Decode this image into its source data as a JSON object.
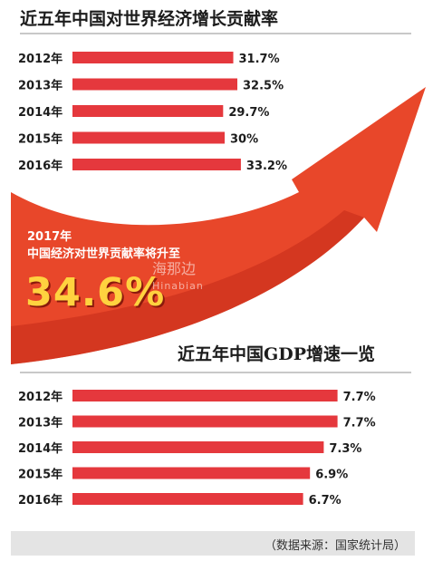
{
  "title1": "近五年中国对世界经济增长贡献率",
  "title2": "近五年中国GDP增速一览",
  "note_line1": "2017年",
  "note_line2": "中国经济对世界贡献率将升至",
  "note_value": "34.6%",
  "watermark_cn": "海那边",
  "watermark_en": "Hinabian",
  "source": "（数据来源：国家统计局）",
  "colors": {
    "bar": "#e5383d",
    "arrow": "#e8472a",
    "arrow_dark": "#c22a18",
    "highlight": "#ffd23f"
  },
  "chart_data": [
    {
      "type": "bar",
      "title": "近五年中国对世界经济增长贡献率",
      "categories": [
        "2012年",
        "2013年",
        "2014年",
        "2015年",
        "2016年"
      ],
      "values": [
        31.7,
        32.5,
        29.7,
        30,
        33.2
      ],
      "labels": [
        "31.7%",
        "32.5%",
        "29.7%",
        "30%",
        "33.2%"
      ],
      "unit": "%",
      "orientation": "horizontal",
      "legend": "none",
      "grid": false
    },
    {
      "type": "bar",
      "title": "近五年中国GDP增速一览",
      "categories": [
        "2012年",
        "2013年",
        "2014年",
        "2015年",
        "2016年"
      ],
      "values": [
        7.7,
        7.7,
        7.3,
        6.9,
        6.7
      ],
      "labels": [
        "7.7%",
        "7.7%",
        "7.3%",
        "6.9%",
        "6.7%"
      ],
      "unit": "%",
      "orientation": "horizontal",
      "legend": "none",
      "grid": false
    }
  ]
}
